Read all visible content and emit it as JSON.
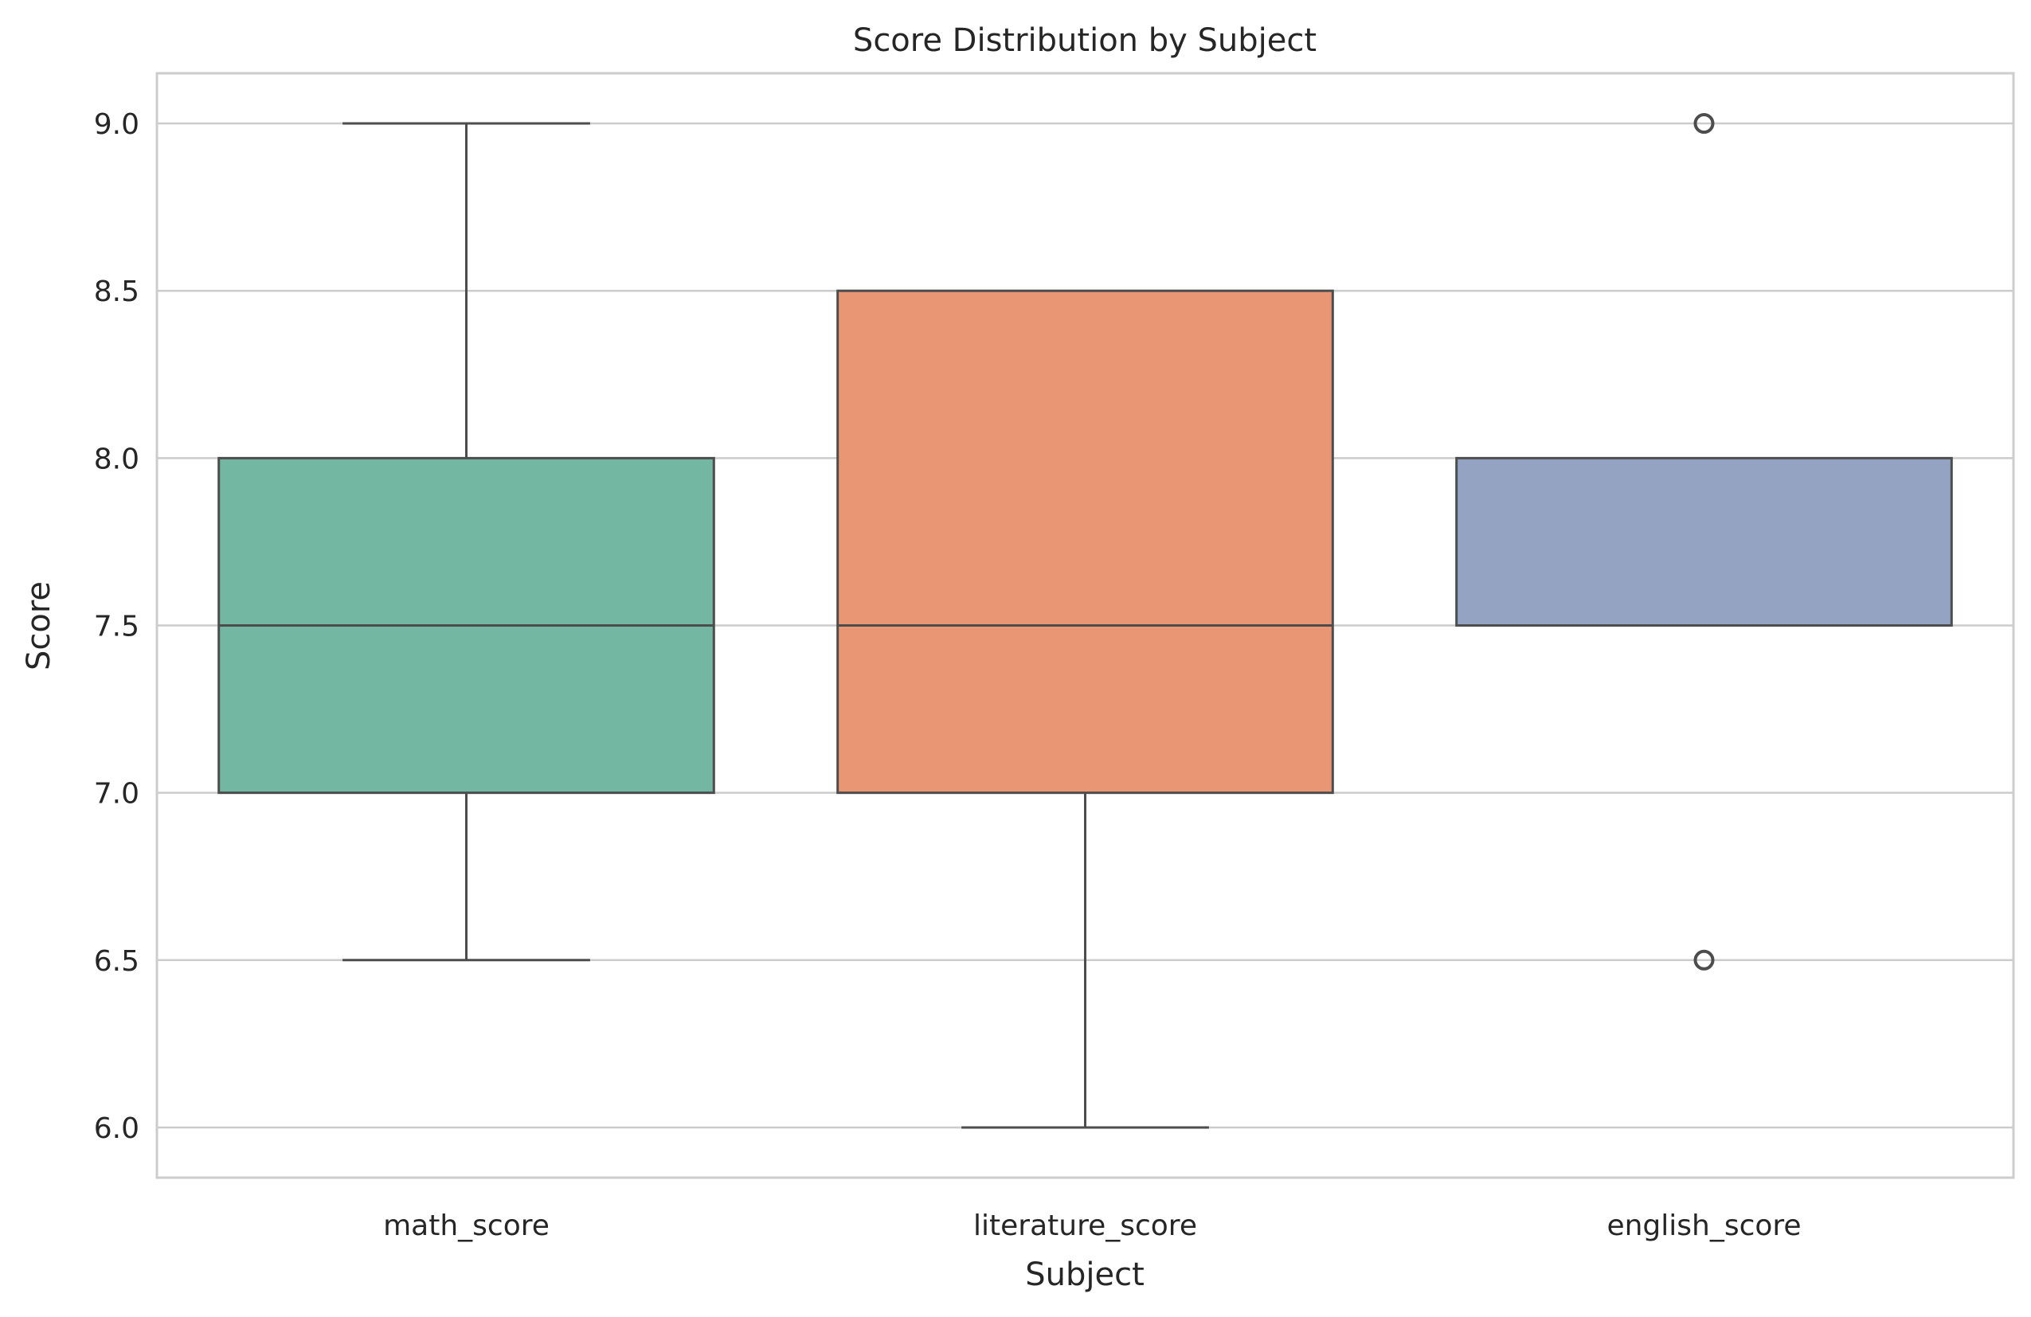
{
  "chart_data": {
    "type": "box",
    "title": "Score Distribution by Subject",
    "xlabel": "Subject",
    "ylabel": "Score",
    "ylim": [
      5.85,
      9.15
    ],
    "yticks": [
      6.0,
      6.5,
      7.0,
      7.5,
      8.0,
      8.5,
      9.0
    ],
    "ytick_labels": [
      "6.0",
      "6.5",
      "7.0",
      "7.5",
      "8.0",
      "8.5",
      "9.0"
    ],
    "grid": true,
    "categories": [
      "math_score",
      "literature_score",
      "english_score"
    ],
    "boxes": [
      {
        "category": "math_score",
        "color": "#73b6a1",
        "whisker_low": 6.5,
        "q1": 7.0,
        "median": 7.5,
        "q3": 8.0,
        "whisker_high": 9.0,
        "outliers": []
      },
      {
        "category": "literature_score",
        "color": "#e99675",
        "whisker_low": 6.0,
        "q1": 7.0,
        "median": 7.5,
        "q3": 8.5,
        "whisker_high": 8.5,
        "outliers": []
      },
      {
        "category": "english_score",
        "color": "#95a3c3",
        "whisker_low": 7.5,
        "q1": 7.5,
        "median": 7.5,
        "q3": 8.0,
        "whisker_high": 8.0,
        "outliers": [
          9.0,
          6.5
        ]
      }
    ]
  }
}
